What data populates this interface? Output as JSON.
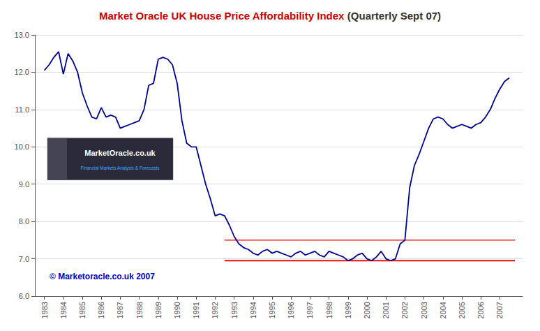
{
  "chart_data": {
    "type": "line",
    "title_parts": [
      {
        "text": "Market Oracle ",
        "color": "#cc0000"
      },
      {
        "text": "UK House Price Affordability Index",
        "color": "#cc0000"
      },
      {
        "text": " (Quarterly Sept 07)",
        "color": "#333333"
      }
    ],
    "color": "#000099",
    "x": [
      1983,
      1983.25,
      1983.5,
      1983.75,
      1984,
      1984.25,
      1984.5,
      1984.75,
      1985,
      1985.25,
      1985.5,
      1985.75,
      1986,
      1986.25,
      1986.5,
      1986.75,
      1987,
      1987.25,
      1987.5,
      1987.75,
      1988,
      1988.25,
      1988.5,
      1988.75,
      1989,
      1989.25,
      1989.5,
      1989.75,
      1990,
      1990.25,
      1990.5,
      1990.75,
      1991,
      1991.25,
      1991.5,
      1991.75,
      1992,
      1992.25,
      1992.5,
      1992.75,
      1993,
      1993.25,
      1993.5,
      1993.75,
      1994,
      1994.25,
      1994.5,
      1994.75,
      1995,
      1995.25,
      1995.5,
      1995.75,
      1996,
      1996.25,
      1996.5,
      1996.75,
      1997,
      1997.25,
      1997.5,
      1997.75,
      1998,
      1998.25,
      1998.5,
      1998.75,
      1999,
      1999.25,
      1999.5,
      1999.75,
      2000,
      2000.25,
      2000.5,
      2000.75,
      2001,
      2001.25,
      2001.5,
      2001.75,
      2002,
      2002.25,
      2002.5,
      2002.75,
      2003,
      2003.25,
      2003.5,
      2003.75,
      2004,
      2004.25,
      2004.5,
      2004.75,
      2005,
      2005.25,
      2005.5,
      2005.75,
      2006,
      2006.25,
      2006.5,
      2006.75,
      2007,
      2007.25,
      2007.5
    ],
    "values": [
      12.05,
      12.2,
      12.4,
      12.55,
      11.95,
      12.5,
      12.3,
      12.0,
      11.45,
      11.1,
      10.8,
      10.75,
      11.05,
      10.8,
      10.85,
      10.8,
      10.5,
      10.55,
      10.6,
      10.65,
      10.7,
      11.0,
      11.65,
      11.7,
      12.35,
      12.4,
      12.35,
      12.2,
      11.7,
      10.7,
      10.1,
      10.0,
      10.0,
      9.5,
      9.0,
      8.6,
      8.15,
      8.2,
      8.15,
      7.9,
      7.6,
      7.4,
      7.3,
      7.25,
      7.15,
      7.1,
      7.2,
      7.25,
      7.15,
      7.2,
      7.15,
      7.1,
      7.05,
      7.15,
      7.2,
      7.1,
      7.15,
      7.2,
      7.1,
      7.05,
      7.2,
      7.15,
      7.1,
      7.05,
      6.95,
      7.0,
      7.1,
      7.15,
      7.0,
      6.95,
      7.05,
      7.2,
      7.0,
      6.95,
      7.0,
      7.4,
      7.5,
      8.9,
      9.5,
      9.8,
      10.15,
      10.5,
      10.75,
      10.8,
      10.75,
      10.6,
      10.5,
      10.55,
      10.6,
      10.55,
      10.5,
      10.6,
      10.65,
      10.8,
      11.0,
      11.3,
      11.55,
      11.75,
      11.85
    ],
    "reference_lines": [
      {
        "y": 7.5,
        "x": [
          1992.5,
          2007.8
        ],
        "color": "red"
      },
      {
        "y": 6.95,
        "x": [
          1992.5,
          2007.8
        ],
        "color": "red"
      }
    ],
    "xlim": [
      1982.5,
      2008.2
    ],
    "xticks": [
      1983,
      1984,
      1985,
      1986,
      1987,
      1988,
      1989,
      1990,
      1991,
      1992,
      1993,
      1994,
      1995,
      1996,
      1997,
      1998,
      1999,
      2000,
      2001,
      2002,
      2003,
      2004,
      2005,
      2006,
      2007
    ],
    "ylim": [
      6.0,
      13.0
    ],
    "yticks": [
      {
        "value": 6.0,
        "label": "6.0"
      },
      {
        "value": 7.0,
        "label": "7.0"
      },
      {
        "value": 8.0,
        "label": "8.0"
      },
      {
        "value": 9.0,
        "label": "9.0"
      },
      {
        "value": 10.0,
        "label": "10.0"
      },
      {
        "value": 11.0,
        "label": "11.0"
      },
      {
        "value": 12.0,
        "label": "12.0"
      },
      {
        "value": 13.0,
        "label": "13.0"
      }
    ],
    "grid": true,
    "annotations": [
      {
        "text": "© Marketoracle.co.uk 2007",
        "color": "#0000cc"
      },
      {
        "text": "MarketOracle.co.uk",
        "color": "#ffffff"
      },
      {
        "text": "Financial Markets Analysis & Forecasts",
        "color": "#44aaff"
      }
    ]
  }
}
